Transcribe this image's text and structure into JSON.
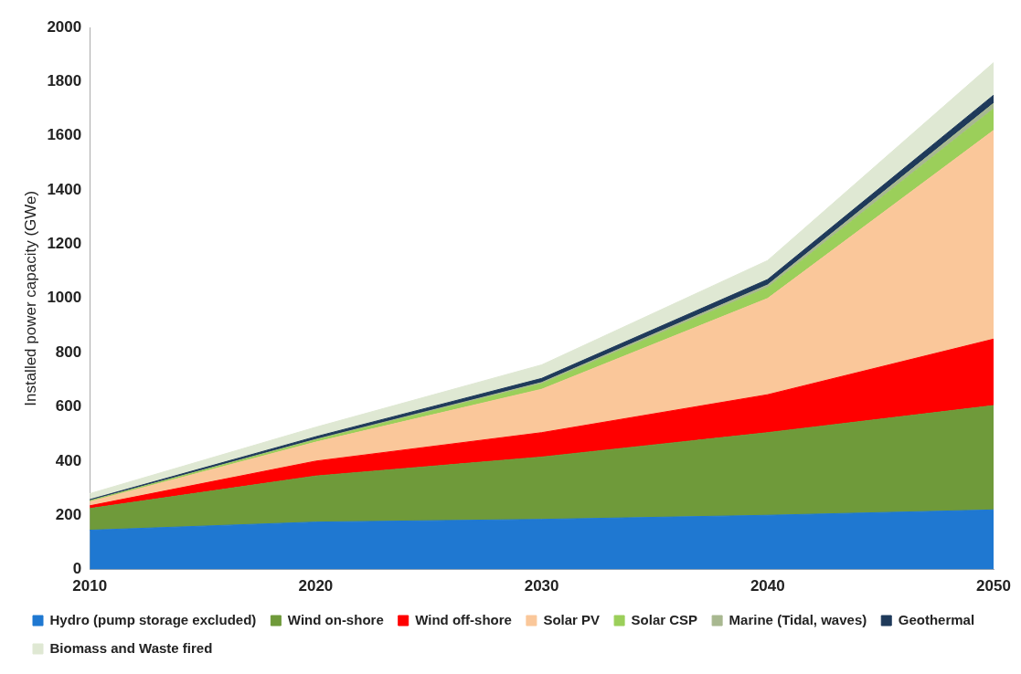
{
  "chart_data": {
    "type": "area",
    "stacked": true,
    "ylabel": "Installed power capacity (GWe)",
    "categories": [
      "2010",
      "2020",
      "2030",
      "2040",
      "2050"
    ],
    "series": [
      {
        "name": "Hydro (pump storage excluded)",
        "color": "#1f78d1",
        "values": [
          145,
          175,
          185,
          200,
          220
        ]
      },
      {
        "name": "Wind on-shore",
        "color": "#6f9a3a",
        "values": [
          80,
          170,
          230,
          305,
          385
        ]
      },
      {
        "name": "Wind off-shore",
        "color": "#ff0000",
        "values": [
          10,
          55,
          90,
          140,
          245
        ]
      },
      {
        "name": "Solar PV",
        "color": "#fac79a",
        "values": [
          15,
          70,
          160,
          355,
          770
        ]
      },
      {
        "name": "Solar CSP",
        "color": "#9bcf5a",
        "values": [
          3,
          8,
          20,
          40,
          80
        ]
      },
      {
        "name": "Marine (Tidal, waves)",
        "color": "#a8b890",
        "values": [
          1,
          2,
          5,
          10,
          20
        ]
      },
      {
        "name": "Geothermal",
        "color": "#1f3a5a",
        "values": [
          4,
          10,
          15,
          20,
          30
        ]
      },
      {
        "name": "Biomass and Waste fired",
        "color": "#dfe8d3",
        "values": [
          22,
          35,
          50,
          70,
          120
        ]
      }
    ],
    "ylim": [
      0,
      2000
    ],
    "yticks": [
      0,
      200,
      400,
      600,
      800,
      1000,
      1200,
      1400,
      1600,
      1800,
      2000
    ],
    "grid": false,
    "legend": "bottom"
  }
}
